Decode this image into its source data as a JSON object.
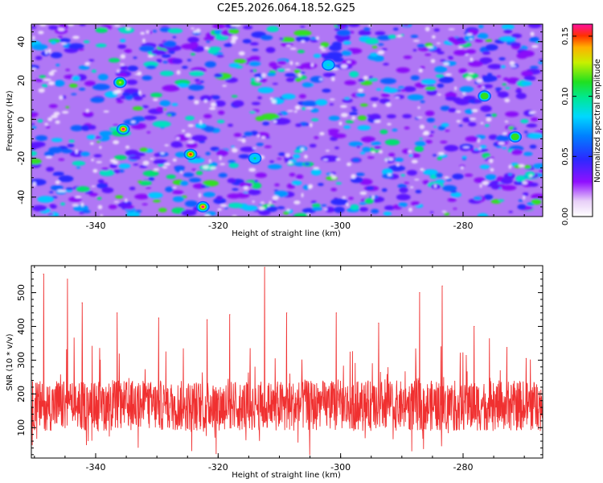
{
  "title": "C2E5.2026.064.18.52.G25",
  "chart_data": [
    {
      "type": "heatmap",
      "xlabel": "Height of straight line (km)",
      "ylabel": "Frequency (Hz)",
      "xlim": [
        -350.5,
        -267
      ],
      "ylim": [
        -50,
        49
      ],
      "xticks": [
        -340,
        -320,
        -300,
        -280
      ],
      "xtick_labels": [
        "-340",
        "-320",
        "-300",
        "-280"
      ],
      "yticks": [
        -40,
        -20,
        0,
        20,
        40
      ],
      "ytick_labels": [
        "-40",
        "-20",
        "0",
        "20",
        "40"
      ],
      "value_range": [
        0.0,
        0.16
      ],
      "colorbar": {
        "label": "Normalized spectral amplitude",
        "ticks": [
          0.0,
          0.05,
          0.1,
          0.15
        ],
        "tick_labels": [
          "0.00",
          "0.05",
          "0.10",
          "0.15"
        ]
      },
      "notable_peaks": [
        {
          "x": -322.5,
          "y": -45,
          "value": 0.16
        },
        {
          "x": -335.5,
          "y": -5,
          "value": 0.15
        },
        {
          "x": -324.5,
          "y": -18,
          "value": 0.14
        },
        {
          "x": -336,
          "y": 19,
          "value": 0.12
        },
        {
          "x": -271.5,
          "y": -9,
          "value": 0.11
        },
        {
          "x": -276.5,
          "y": 12,
          "value": 0.1
        },
        {
          "x": -314,
          "y": -20,
          "value": 0.09
        },
        {
          "x": -302,
          "y": 28,
          "value": 0.08
        }
      ]
    },
    {
      "type": "line",
      "xlabel": "Height of straight line (km)",
      "ylabel": "SNR (10 * v/v)",
      "xlim": [
        -350.5,
        -267
      ],
      "ylim": [
        10,
        580
      ],
      "xticks": [
        -340,
        -320,
        -300,
        -280
      ],
      "xtick_labels": [
        "-340",
        "-320",
        "-300",
        "-280"
      ],
      "yticks": [
        100,
        200,
        300,
        400,
        500
      ],
      "ytick_labels": [
        "100",
        "200",
        "300",
        "400",
        "500"
      ],
      "series": [
        {
          "name": "SNR",
          "color": "#f03030",
          "baseline": 165,
          "spikes": [
            {
              "x": -348.5,
              "y": 555
            },
            {
              "x": -344.6,
              "y": 540
            },
            {
              "x": -342.2,
              "y": 470
            },
            {
              "x": -336.5,
              "y": 440
            },
            {
              "x": -329.7,
              "y": 425
            },
            {
              "x": -321.8,
              "y": 420
            },
            {
              "x": -318.1,
              "y": 435
            },
            {
              "x": -312.4,
              "y": 575
            },
            {
              "x": -308.8,
              "y": 440
            },
            {
              "x": -300.7,
              "y": 440
            },
            {
              "x": -293.8,
              "y": 410
            },
            {
              "x": -287.1,
              "y": 500
            },
            {
              "x": -283.4,
              "y": 520
            },
            {
              "x": -278.2,
              "y": 400
            },
            {
              "x": -269.7,
              "y": 305
            }
          ]
        }
      ]
    }
  ]
}
